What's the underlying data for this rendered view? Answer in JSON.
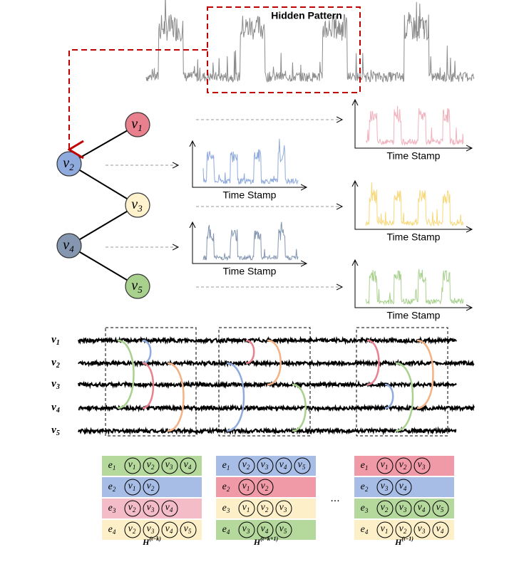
{
  "hidden_pattern": "Hidden Pattern",
  "symbols": {
    "vertex": "v",
    "edge": "e",
    "matrix": "H"
  },
  "graph": {
    "nodes": [
      "1",
      "2",
      "3",
      "4",
      "5"
    ]
  },
  "plots": [
    {
      "xlabel": "Time Stamp"
    },
    {
      "xlabel": "Time Stamp"
    },
    {
      "xlabel": "Time Stamp"
    },
    {
      "xlabel": "Time Stamp"
    },
    {
      "xlabel": "Time Stamp"
    }
  ],
  "rows": [
    "1",
    "2",
    "3",
    "4",
    "5"
  ],
  "tables": [
    {
      "caption": "(t−k)",
      "rows": [
        {
          "edge": "1",
          "color": "#b5d99c",
          "members": [
            "1",
            "2",
            "3",
            "4"
          ]
        },
        {
          "edge": "2",
          "color": "#a7bde6",
          "members": [
            "1",
            "2"
          ]
        },
        {
          "edge": "3",
          "color": "#f4bcc6",
          "members": [
            "2",
            "3",
            "4"
          ]
        },
        {
          "edge": "4",
          "color": "#fdf0c8",
          "members": [
            "2",
            "3",
            "4",
            "5"
          ]
        }
      ]
    },
    {
      "caption": "(t−k+1)",
      "rows": [
        {
          "edge": "1",
          "color": "#a7bde6",
          "members": [
            "2",
            "3",
            "4",
            "5"
          ]
        },
        {
          "edge": "2",
          "color": "#ef9aa6",
          "members": [
            "1",
            "2"
          ]
        },
        {
          "edge": "3",
          "color": "#fdf0c8",
          "members": [
            "1",
            "2",
            "3"
          ]
        },
        {
          "edge": "4",
          "color": "#b5d99c",
          "members": [
            "3",
            "4",
            "5"
          ]
        }
      ]
    },
    {
      "caption": "(t−1)",
      "rows": [
        {
          "edge": "1",
          "color": "#ef9aa6",
          "members": [
            "1",
            "2",
            "3"
          ]
        },
        {
          "edge": "2",
          "color": "#a7bde6",
          "members": [
            "3",
            "4"
          ]
        },
        {
          "edge": "3",
          "color": "#b5d99c",
          "members": [
            "2",
            "3",
            "4",
            "5"
          ]
        },
        {
          "edge": "4",
          "color": "#fdf0c8",
          "members": [
            "1",
            "2",
            "3",
            "4"
          ]
        }
      ]
    }
  ],
  "ellipsis": "..."
}
